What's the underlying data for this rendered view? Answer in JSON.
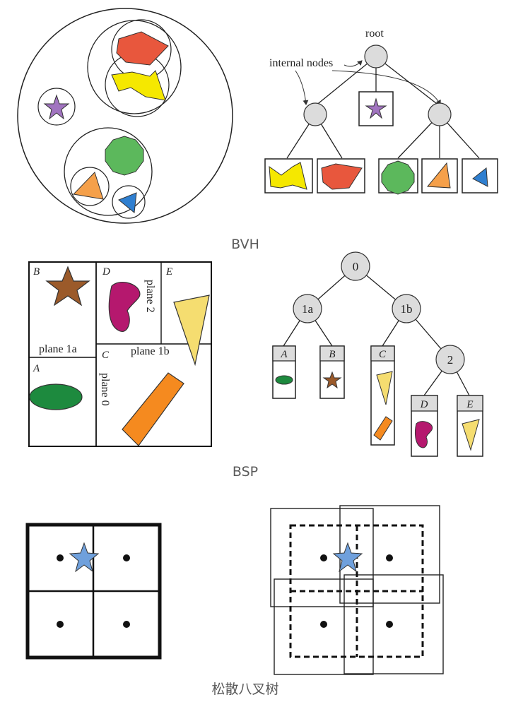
{
  "captions": {
    "bvh": "BVH",
    "bsp": "BSP",
    "octree": "松散八叉树"
  },
  "bvh": {
    "root_label": "root",
    "internal_nodes_label": "internal nodes"
  },
  "bsp": {
    "region_labels": [
      "A",
      "B",
      "C",
      "D",
      "E"
    ],
    "plane_labels": {
      "plane0": "plane 0",
      "plane1a": "plane 1a",
      "plane1b": "plane 1b",
      "plane2": "plane 2"
    },
    "tree_nodes": {
      "n0": "0",
      "n1a": "1a",
      "n1b": "1b",
      "n2": "2"
    },
    "leaves": [
      "A",
      "B",
      "C",
      "D",
      "E"
    ]
  },
  "colors": {
    "red": "#e8573d",
    "yellow": "#f5e800",
    "purple": "#a174c0",
    "green": "#5cb85c",
    "orange": "#f5a04a",
    "blue": "#2f7fd0",
    "brown": "#9b5a2a",
    "magenta": "#b5186e",
    "dark_green": "#1d8a3e",
    "bsp_orange": "#f58a1f",
    "pale_yellow": "#f5dd70",
    "star_blue": "#6fa0dc",
    "node_gray": "#dcdcdc"
  }
}
